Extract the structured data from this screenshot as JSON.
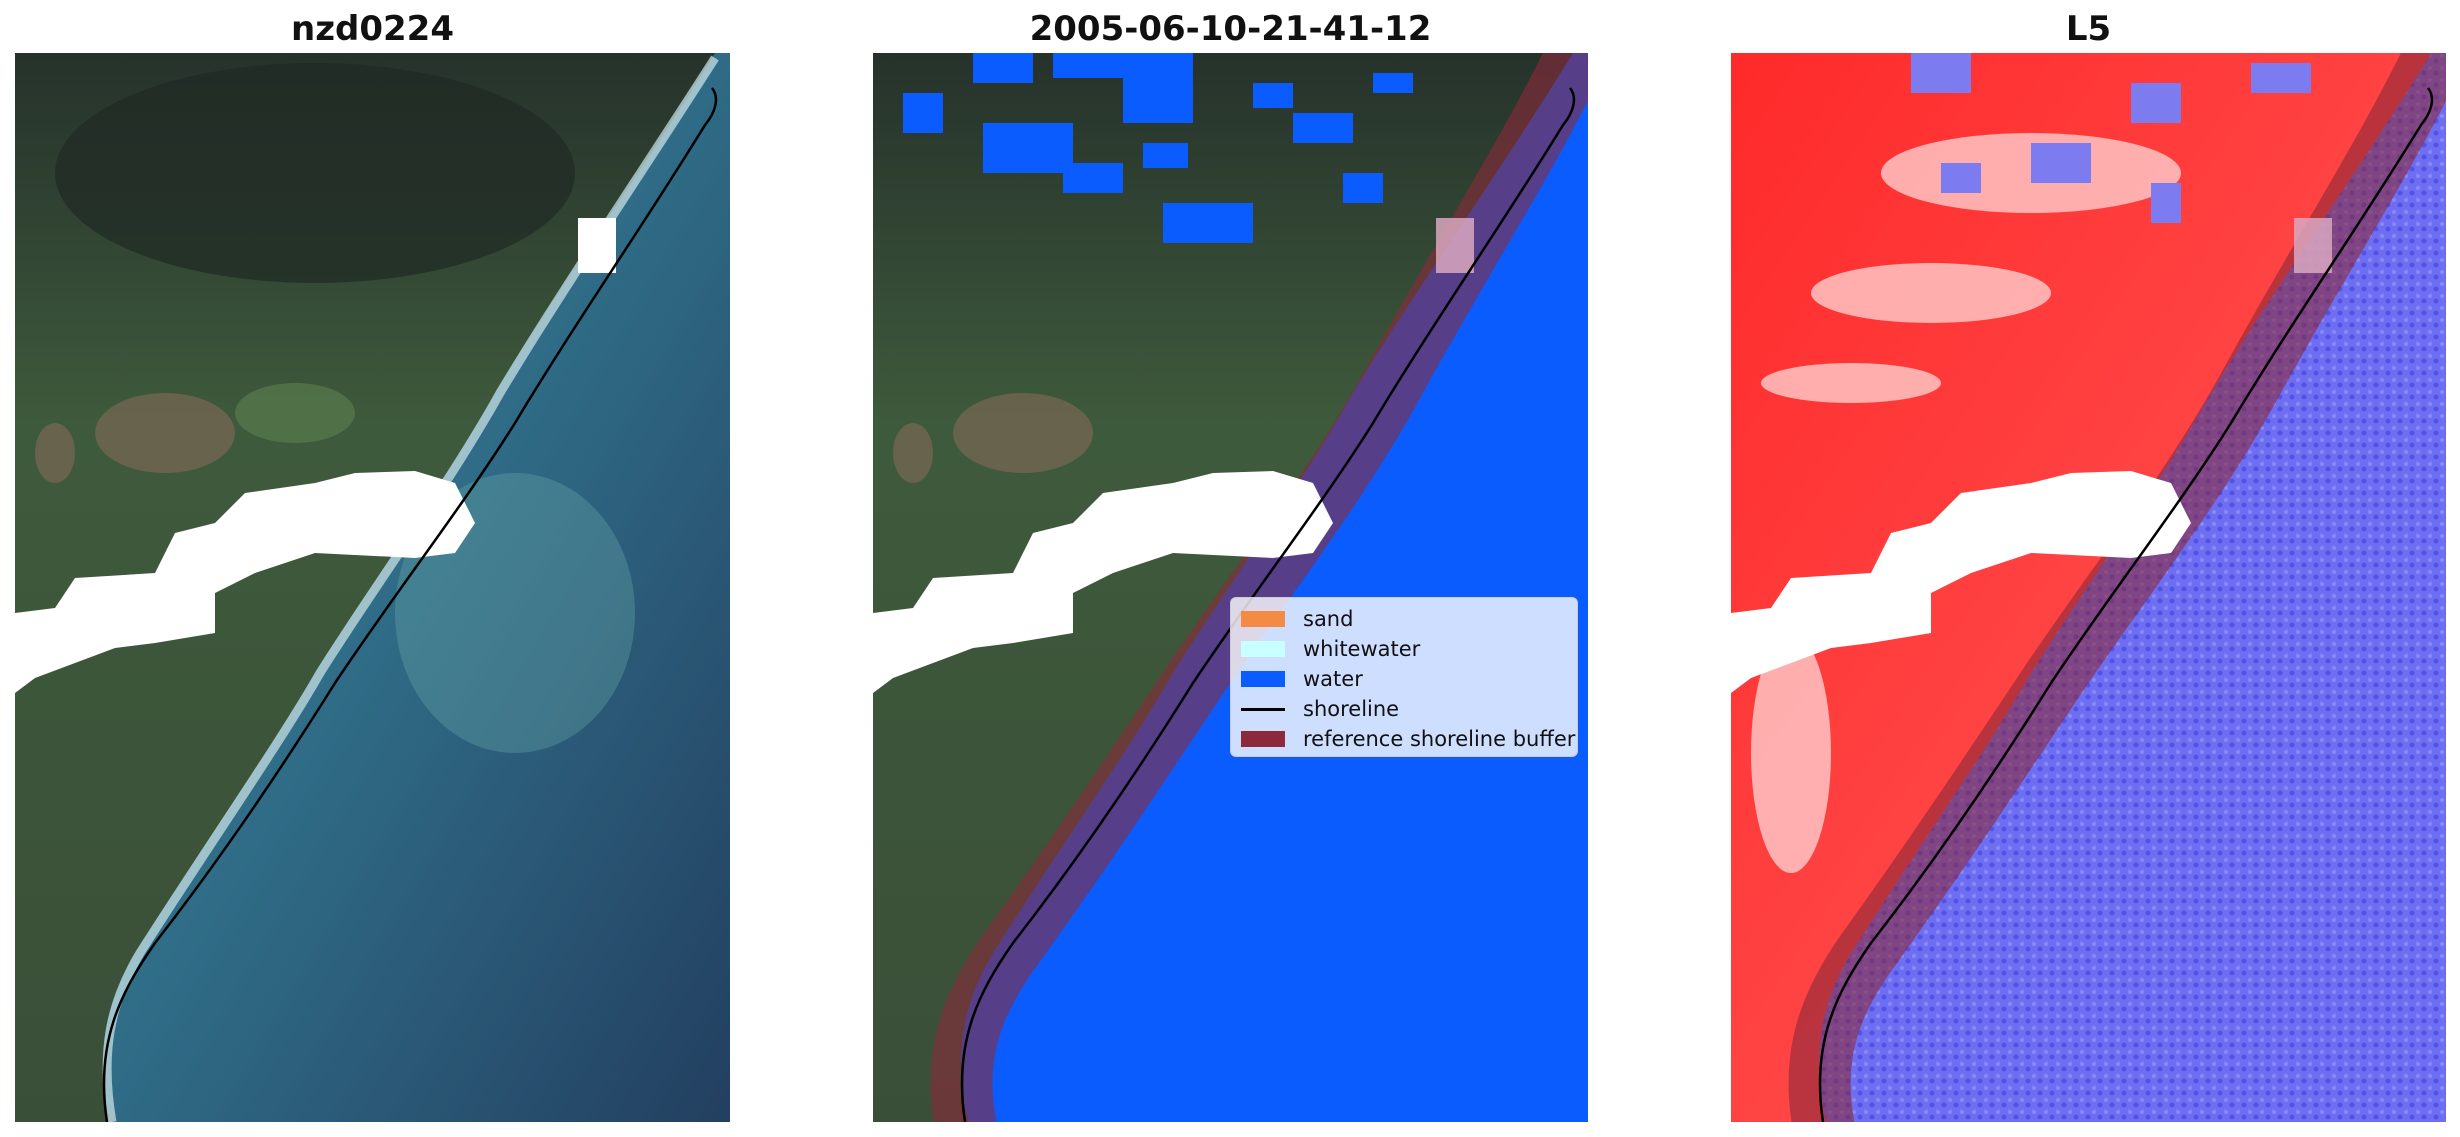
{
  "panels": [
    {
      "title": "nzd0224"
    },
    {
      "title": "2005-06-10-21-41-12"
    },
    {
      "title": "L5"
    }
  ],
  "legend": {
    "items": [
      {
        "label": "sand",
        "color": "#f58a45",
        "kind": "patch"
      },
      {
        "label": "whitewater",
        "color": "#c8ffff",
        "kind": "patch"
      },
      {
        "label": "water",
        "color": "#0a5cff",
        "kind": "patch"
      },
      {
        "label": "shoreline",
        "color": "#000000",
        "kind": "line"
      },
      {
        "label": "reference shoreline buffer",
        "color": "#8b2a3a",
        "kind": "patch"
      }
    ]
  },
  "colors": {
    "land_dark": "#2f3d33",
    "land_green": "#4d6b47",
    "ocean_deep": "#254666",
    "ocean_turquoise": "#3c7f93",
    "water_class": "#0a5cff",
    "buffer": "#8b2a3a",
    "index_positive": "#ff1a1a",
    "index_negative": "#5a5af0"
  }
}
